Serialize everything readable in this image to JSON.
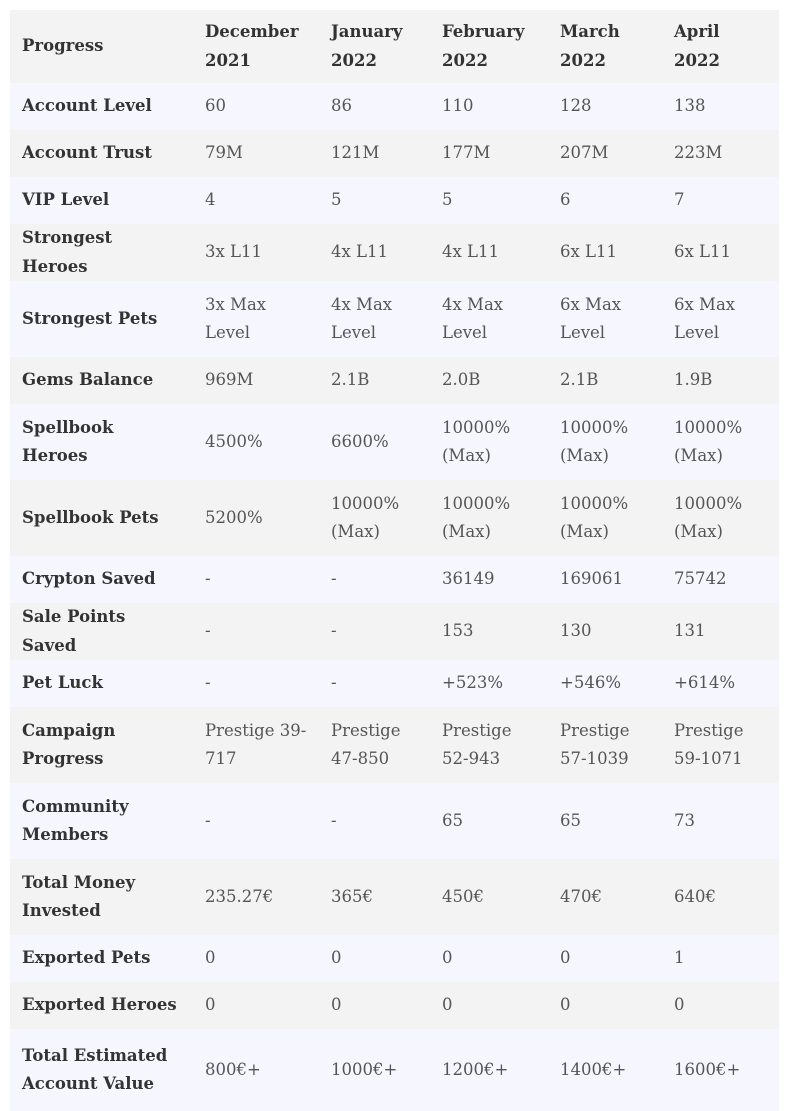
{
  "table": {
    "columns": [
      "Progress",
      "December 2021",
      "January 2022",
      "February 2022",
      "March 2022",
      "April 2022"
    ],
    "rows": [
      {
        "label": "Account Level",
        "values": [
          "60",
          "86",
          "110",
          "128",
          "138"
        ]
      },
      {
        "label": "Account Trust",
        "values": [
          "79M",
          "121M",
          "177M",
          "207M",
          "223M"
        ]
      },
      {
        "label": "VIP Level",
        "values": [
          "4",
          "5",
          "5",
          "6",
          "7"
        ]
      },
      {
        "label": "Strongest Heroes",
        "values": [
          "3x L11",
          "4x L11",
          "4x L11",
          "6x L11",
          "6x L11"
        ]
      },
      {
        "label": "Strongest Pets",
        "values": [
          "3x Max Level",
          "4x Max Level",
          "4x Max Level",
          "6x Max Level",
          "6x Max Level"
        ]
      },
      {
        "label": "Gems Balance",
        "values": [
          "969M",
          "2.1B",
          "2.0B",
          "2.1B",
          "1.9B"
        ]
      },
      {
        "label": "Spellbook Heroes",
        "values": [
          "4500%",
          "6600%",
          "10000% (Max)",
          "10000% (Max)",
          "10000% (Max)"
        ]
      },
      {
        "label": "Spellbook Pets",
        "values": [
          "5200%",
          "10000% (Max)",
          "10000% (Max)",
          "10000% (Max)",
          "10000% (Max)"
        ]
      },
      {
        "label": "Crypton Saved",
        "values": [
          "-",
          "-",
          "36149",
          "169061",
          "75742"
        ]
      },
      {
        "label": "Sale Points Saved",
        "values": [
          "-",
          "-",
          "153",
          "130",
          "131"
        ]
      },
      {
        "label": "Pet Luck",
        "values": [
          "-",
          "-",
          "+523%",
          "+546%",
          "+614%"
        ]
      },
      {
        "label": "Campaign Progress",
        "values": [
          "Prestige 39-717",
          "Prestige 47-850",
          "Prestige 52-943",
          "Prestige 57-1039",
          "Prestige 59-1071"
        ]
      },
      {
        "label": "Community Members",
        "values": [
          "-",
          "-",
          "65",
          "65",
          "73"
        ]
      },
      {
        "label": "Total Money Invested",
        "values": [
          "235.27€",
          "365€",
          "450€",
          "470€",
          "640€"
        ]
      },
      {
        "label": "Exported Pets",
        "values": [
          "0",
          "0",
          "0",
          "0",
          "1"
        ]
      },
      {
        "label": "Exported Heroes",
        "values": [
          "0",
          "0",
          "0",
          "0",
          "0"
        ]
      },
      {
        "label": "Total Estimated Account Value",
        "values": [
          "800€+",
          "1000€+",
          "1200€+",
          "1400€+",
          "1600€+"
        ]
      }
    ]
  }
}
